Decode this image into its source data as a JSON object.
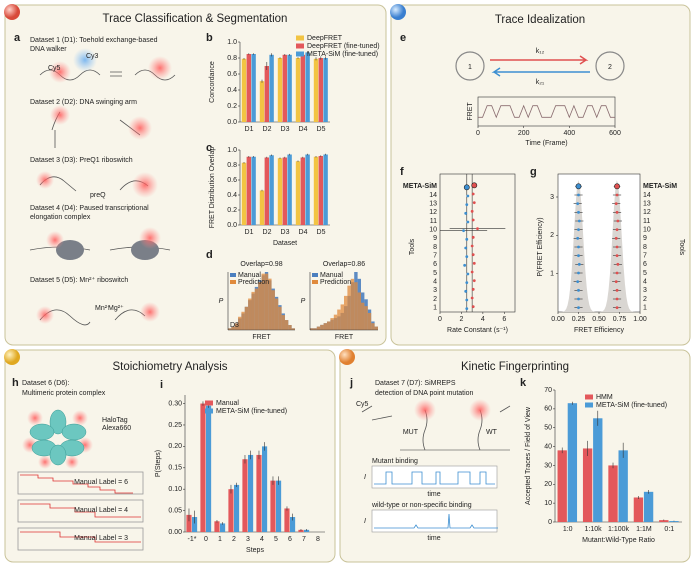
{
  "panels": [
    {
      "title": "Trace Classification & Segmentation"
    },
    {
      "title": "Trace Idealization"
    },
    {
      "title": "Stoichiometry Analysis"
    },
    {
      "title": "Kinetic Fingerprinting"
    }
  ],
  "panel_a": {
    "letter": "a",
    "datasets": [
      [
        "Dataset 1 (D1): Toehold exchange-based",
        "DNA walker"
      ],
      [
        "Dataset 2 (D2): DNA swinging arm"
      ],
      [
        "Dataset 3 (D3): PreQ1 riboswitch"
      ],
      [
        "Dataset 4 (D4): Paused transcriptional",
        "elongation complex"
      ],
      [
        "Dataset 5 (D5): Mn²⁺ riboswitch"
      ]
    ],
    "dyes": [
      "Cy5",
      "Cy3"
    ],
    "ligands": [
      "preQ",
      "Mn²⁺",
      "Mg²⁺"
    ]
  },
  "panel_h": {
    "letter": "h",
    "text": [
      "Dataset 6 (D6):",
      "Multimeric protein complex"
    ],
    "tags": [
      "HaloTag",
      "Alexa660"
    ],
    "trace_labels": [
      "Manual Label = 6",
      "Manual Label = 4",
      "Manual Label = 3"
    ]
  },
  "panel_j": {
    "letter": "j",
    "text": [
      "Dataset 7 (D7): SiMREPS",
      "detection of DNA point mutation"
    ],
    "dye": "Cy5",
    "targets": [
      "MUT",
      "WT"
    ],
    "traces": [
      "Mutant binding",
      "wild-type or non-specific binding"
    ],
    "ylabel": "I",
    "xlabel": "time"
  },
  "chart_data": [
    {
      "type": "bar",
      "panel": "b",
      "ylabel": "Concordance",
      "categories": [
        "D1",
        "D2",
        "D3",
        "D4",
        "D5"
      ],
      "series": [
        {
          "name": "DeepFRET",
          "color": "#f2c443",
          "values": [
            0.79,
            0.51,
            0.8,
            0.8,
            0.79
          ],
          "errors": [
            0.01,
            0.02,
            0.01,
            0.01,
            0.02
          ]
        },
        {
          "name": "DeepFRET (fine-tuned)",
          "color": "#e3585b",
          "values": [
            0.85,
            0.7,
            0.84,
            0.84,
            0.8
          ],
          "errors": [
            0.01,
            0.05,
            0.01,
            0.01,
            0.02
          ]
        },
        {
          "name": "META-SiM (fine-tuned)",
          "color": "#4b9bd7",
          "values": [
            0.85,
            0.84,
            0.84,
            0.87,
            0.8
          ],
          "errors": [
            0.01,
            0.02,
            0.01,
            0.01,
            0.02
          ]
        }
      ],
      "ylim": [
        0,
        1
      ],
      "yticks": [
        {
          "value": 0,
          "label": "0.0"
        },
        0.2,
        0.4,
        0.6,
        0.8,
        {
          "value": 1,
          "label": "1.0"
        }
      ],
      "legend": "top-right"
    },
    {
      "type": "bar",
      "panel": "c",
      "ylabel": "FRET Distribution Overlap",
      "xlabel": "Dataset",
      "categories": [
        "D1",
        "D2",
        "D3",
        "D4",
        "D5"
      ],
      "series": [
        {
          "color": "#f2c443",
          "values": [
            0.83,
            0.46,
            0.89,
            0.85,
            0.91
          ],
          "errors": [
            0.01,
            0.01,
            0.01,
            0.01,
            0.01
          ]
        },
        {
          "color": "#e3585b",
          "values": [
            0.91,
            0.9,
            0.9,
            0.9,
            0.92
          ],
          "errors": [
            0.01,
            0.01,
            0.01,
            0.01,
            0.01
          ]
        },
        {
          "color": "#4b9bd7",
          "values": [
            0.91,
            0.93,
            0.94,
            0.94,
            0.94
          ],
          "errors": [
            0.01,
            0.01,
            0.01,
            0.01,
            0.01
          ]
        }
      ],
      "ylim": [
        0,
        1
      ],
      "yticks": [
        {
          "value": 0,
          "label": "0.0"
        },
        0.2,
        0.4,
        0.6,
        0.8,
        {
          "value": 1,
          "label": "1.0"
        }
      ]
    },
    {
      "type": "histogram",
      "panel": "d",
      "annotation": "Overlap=0.98",
      "ylabel": "P",
      "xlabel": "FRET",
      "tag": "D3",
      "bins": [
        0,
        0.05,
        0.1,
        0.15,
        0.2,
        0.25,
        0.3,
        0.35,
        0.4,
        0.45,
        0.5,
        0.55,
        0.6,
        0.65,
        0.7,
        0.75,
        0.8,
        0.85,
        0.9,
        0.95,
        1
      ],
      "series": [
        {
          "name": "Manual",
          "color": "#4b7fbf",
          "values": [
            1,
            2,
            4,
            7,
            10,
            14,
            18,
            22,
            26,
            30,
            33,
            35,
            30,
            25,
            20,
            15,
            10,
            6,
            3,
            1
          ]
        },
        {
          "name": "Prediction",
          "color": "#e08a3c",
          "values": [
            1,
            2,
            4,
            8,
            11,
            14,
            19,
            23,
            25,
            29,
            34,
            34,
            31,
            24,
            19,
            14,
            9,
            6,
            3,
            1
          ]
        }
      ]
    },
    {
      "type": "histogram",
      "annotation": "Overlap=0.86",
      "ylabel": "P",
      "xlabel": "FRET",
      "bins": [
        0,
        0.05,
        0.1,
        0.15,
        0.2,
        0.25,
        0.3,
        0.35,
        0.4,
        0.45,
        0.5,
        0.55,
        0.6,
        0.65,
        0.7,
        0.75,
        0.8,
        0.85,
        0.9,
        0.95,
        1
      ],
      "series": [
        {
          "name": "Manual",
          "color": "#4b7fbf",
          "values": [
            1,
            1,
            2,
            3,
            4,
            5,
            6,
            7,
            8,
            10,
            14,
            20,
            28,
            34,
            30,
            22,
            18,
            12,
            5,
            2
          ]
        },
        {
          "name": "Prediction",
          "color": "#e08a3c",
          "values": [
            1,
            1,
            2,
            3,
            4,
            5,
            7,
            9,
            12,
            15,
            20,
            26,
            30,
            28,
            22,
            16,
            14,
            10,
            4,
            2
          ]
        }
      ]
    },
    {
      "type": "line",
      "panel": "e",
      "states": [
        "1",
        "2"
      ],
      "ylabel": "FRET",
      "xlabel": "Time (Frame)",
      "color": "#8a6d70",
      "x": [
        0,
        20,
        40,
        60,
        80,
        100,
        120,
        140,
        160,
        180,
        200,
        220,
        240,
        260,
        280,
        300,
        320,
        340,
        360,
        380,
        400,
        420,
        440,
        460,
        480,
        500,
        520,
        540,
        560,
        580,
        600
      ],
      "values": [
        0.3,
        0.3,
        0.7,
        0.7,
        0.3,
        0.7,
        0.7,
        0.7,
        0.3,
        0.3,
        0.7,
        0.3,
        0.7,
        0.7,
        0.3,
        0.3,
        0.3,
        0.7,
        0.7,
        0.7,
        0.3,
        0.7,
        0.3,
        0.3,
        0.7,
        0.7,
        0.3,
        0.7,
        0.7,
        0.3,
        0.3
      ],
      "xlim": [
        0,
        600
      ],
      "xticks": [
        0,
        200,
        400,
        600
      ],
      "ylim": [
        0,
        1
      ]
    },
    {
      "type": "dot",
      "panel": "f",
      "ylabel": "Tools",
      "xlabel": "Rate Constant (s⁻¹)",
      "categories": [
        "META-SiM",
        "14",
        "13",
        "12",
        "11",
        "10",
        "9",
        "8",
        "7",
        "6",
        "5",
        "4",
        "3",
        "2",
        "1"
      ],
      "series": [
        {
          "name": "k₁₂",
          "color": "#e05050",
          "values": [
            3.2,
            3.1,
            3.2,
            3.0,
            3.1,
            3.5,
            3.1,
            3.0,
            3.1,
            3.2,
            3.0,
            3.2,
            3.1,
            3.0,
            3.1
          ],
          "errors": [
            0.1,
            0.1,
            0.1,
            0.1,
            0.1,
            2.6,
            0.1,
            0.1,
            0.1,
            0.1,
            0.1,
            0.1,
            0.1,
            0.1,
            0.1
          ]
        },
        {
          "name": "k₂₁",
          "color": "#3d8fd1",
          "values": [
            2.5,
            2.6,
            2.5,
            2.4,
            2.6,
            2.2,
            2.5,
            2.4,
            2.5,
            2.3,
            2.6,
            2.5,
            2.4,
            2.5,
            2.5
          ],
          "errors": [
            0.1,
            0.1,
            0.1,
            0.1,
            0.1,
            2.2,
            0.1,
            0.1,
            0.1,
            0.1,
            0.1,
            0.1,
            0.1,
            0.1,
            0.1
          ]
        }
      ],
      "true_values": [
        2.5,
        3.0
      ],
      "xlim": [
        0,
        7
      ],
      "xticks": [
        0,
        2,
        4,
        6
      ]
    },
    {
      "type": "dot",
      "panel": "g",
      "ylabel": "P(FRET Efficiency)",
      "xlabel": "FRET Efficiency",
      "y2label": "Tools",
      "series": [
        {
          "color": "#3d8fd1",
          "values": [
            0.25,
            0.25,
            0.24,
            0.25,
            0.26,
            0.25,
            0.24,
            0.25,
            0.25,
            0.26,
            0.25,
            0.24,
            0.25,
            0.25,
            0.25
          ],
          "errors": [
            0.04,
            0.05,
            0.05,
            0.05,
            0.05,
            0.05,
            0.05,
            0.05,
            0.05,
            0.05,
            0.05,
            0.05,
            0.05,
            0.05,
            0.05
          ]
        },
        {
          "color": "#e05050",
          "values": [
            0.72,
            0.72,
            0.71,
            0.72,
            0.73,
            0.72,
            0.71,
            0.72,
            0.72,
            0.73,
            0.72,
            0.71,
            0.72,
            0.72,
            0.72
          ],
          "errors": [
            0.04,
            0.05,
            0.05,
            0.05,
            0.05,
            0.05,
            0.05,
            0.05,
            0.05,
            0.05,
            0.05,
            0.05,
            0.05,
            0.05,
            0.05
          ]
        }
      ],
      "xlim": [
        0,
        1
      ],
      "xticks": [
        {
          "value": 0,
          "label": "0.00"
        },
        0.25,
        {
          "value": 0.5,
          "label": "0.50"
        },
        0.75,
        {
          "value": 1,
          "label": "1.00"
        }
      ],
      "ylim": [
        0,
        3.6
      ],
      "yticks": [
        1,
        2,
        3
      ]
    },
    {
      "type": "bar",
      "panel": "i",
      "ylabel": "P(Steps)",
      "xlabel": "Steps",
      "categories": [
        "-1*",
        "0",
        "1",
        "2",
        "3",
        "4",
        "5",
        "6",
        "7",
        "8"
      ],
      "series": [
        {
          "name": "Manual",
          "color": "#e3585b",
          "values": [
            0.04,
            0.3,
            0.025,
            0.1,
            0.17,
            0.18,
            0.12,
            0.055,
            0.005,
            0
          ],
          "errors": [
            0.015,
            0.005,
            0.003,
            0.01,
            0.01,
            0.01,
            0.01,
            0.005,
            0.002,
            0
          ]
        },
        {
          "name": "META-SiM (fine-tuned)",
          "color": "#4b9bd7",
          "values": [
            0.035,
            0.295,
            0.02,
            0.11,
            0.18,
            0.2,
            0.12,
            0.035,
            0.005,
            0
          ],
          "errors": [
            0.015,
            0.005,
            0.003,
            0.005,
            0.01,
            0.01,
            0.01,
            0.008,
            0.002,
            0
          ]
        }
      ],
      "ylim": [
        0,
        0.32
      ],
      "yticks": [
        {
          "value": 0,
          "label": "0.00"
        },
        0.05,
        {
          "value": 0.1,
          "label": "0.10"
        },
        0.15,
        {
          "value": 0.2,
          "label": "0.20"
        },
        0.25,
        {
          "value": 0.3,
          "label": "0.30"
        }
      ],
      "legend": "top-left"
    },
    {
      "type": "bar",
      "panel": "k",
      "ylabel": "Accepted Traces / Field of View",
      "xlabel": "Mutant:Wild-Type Ratio",
      "categories": [
        "1:0",
        "1:10k",
        "1:100k",
        "1:1M",
        "0:1"
      ],
      "series": [
        {
          "name": "HMM",
          "color": "#e3585b",
          "values": [
            38,
            39,
            30,
            13,
            1
          ],
          "errors": [
            1.5,
            4,
            1.5,
            0.8,
            0.3
          ]
        },
        {
          "name": "META-SiM (fine-tuned)",
          "color": "#4b9bd7",
          "values": [
            63,
            55,
            38,
            16,
            0.5
          ],
          "errors": [
            0.8,
            4,
            4,
            1,
            0.2
          ]
        }
      ],
      "ylim": [
        0,
        70
      ],
      "yticks": [
        0,
        10,
        20,
        30,
        40,
        50,
        60,
        70
      ],
      "legend": "top-right"
    }
  ]
}
